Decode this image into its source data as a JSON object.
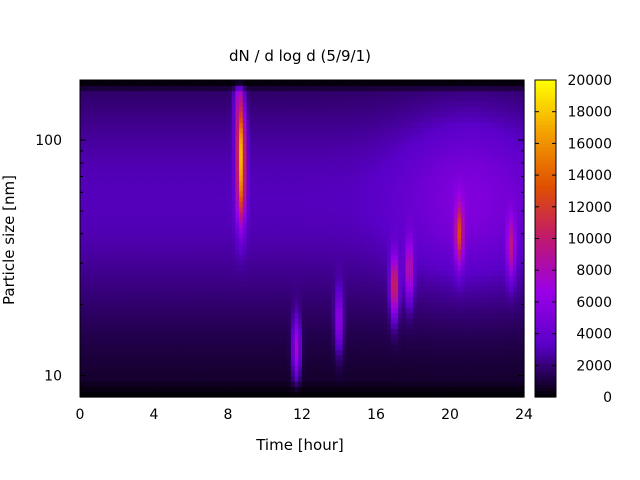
{
  "chart_data": {
    "type": "heatmap",
    "title": "dN / d log d (5/9/1)",
    "xlabel": "Time [hour]",
    "ylabel": "Particle size [nm]",
    "xlim": [
      0,
      24
    ],
    "ylim": [
      8.1,
      180
    ],
    "yscale": "log",
    "x_ticks": [
      0,
      4,
      8,
      12,
      16,
      20,
      24
    ],
    "y_ticks": [
      10,
      100
    ],
    "colorbar": {
      "range": [
        0,
        20000
      ],
      "ticks": [
        0,
        2000,
        4000,
        6000,
        8000,
        10000,
        12000,
        14000,
        16000,
        18000,
        20000
      ],
      "colormap": "black-purple-red-orange-yellow",
      "colors": [
        "#000000",
        "#5a00c8",
        "#9a00e8",
        "#c01870",
        "#e05000",
        "#f4a000",
        "#ffff00"
      ]
    },
    "background_level": 2500,
    "hotspots": [
      {
        "time": 8.7,
        "size": 95,
        "value": 11500
      },
      {
        "time": 8.7,
        "size": 60,
        "value": 9000
      },
      {
        "time": 8.6,
        "size": 150,
        "value": 5500
      },
      {
        "time": 11.7,
        "size": 13,
        "value": 6500
      },
      {
        "time": 14.0,
        "size": 17,
        "value": 5000
      },
      {
        "time": 17.0,
        "size": 24,
        "value": 9500
      },
      {
        "time": 17.8,
        "size": 28,
        "value": 6500
      },
      {
        "time": 20.5,
        "size": 40,
        "value": 8200
      },
      {
        "time": 23.3,
        "size": 35,
        "value": 6000
      }
    ]
  }
}
